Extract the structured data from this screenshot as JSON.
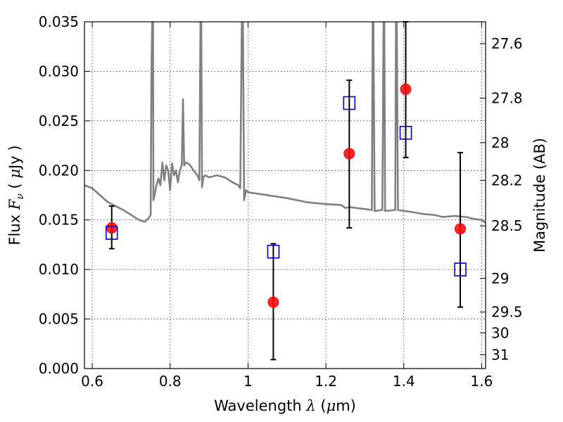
{
  "chart_data": {
    "type": "scatter",
    "title": "",
    "xlabel": {
      "prefix": "Wavelength  ",
      "symbol": "λ",
      "suffix": " (",
      "unit_symbol": "μ",
      "unit": "m)"
    },
    "ylabel": {
      "prefix": "Flux  ",
      "symbol": "F",
      "subscript": "ν",
      "open": "  ( ",
      "unit_symbol": "μ",
      "unit": "Jy )"
    },
    "y2label": "Magnitude (AB)",
    "xlim": [
      0.58,
      1.61
    ],
    "ylim": [
      0.0,
      0.035
    ],
    "grid": true,
    "x_ticks": [
      0.6,
      0.8,
      1.0,
      1.2,
      1.4,
      1.6
    ],
    "x_tick_labels": [
      "0.6",
      "0.8",
      "1",
      "1.2",
      "1.4",
      "1.6"
    ],
    "y_ticks": [
      0.0,
      0.005,
      0.01,
      0.015,
      0.02,
      0.025,
      0.03,
      0.035
    ],
    "y_tick_labels": [
      "0.000",
      "0.005",
      "0.010",
      "0.015",
      "0.020",
      "0.025",
      "0.030",
      "0.035"
    ],
    "y2_ticks": [
      {
        "label": "27.6",
        "flux": 0.0328
      },
      {
        "label": "27.8",
        "flux": 0.0273
      },
      {
        "label": "28",
        "flux": 0.0228
      },
      {
        "label": "28.2",
        "flux": 0.019
      },
      {
        "label": "28.5",
        "flux": 0.0144
      },
      {
        "label": "29",
        "flux": 0.0091
      },
      {
        "label": "29.5",
        "flux": 0.0057
      },
      {
        "label": "30",
        "flux": 0.0036
      },
      {
        "label": "31",
        "flux": 0.0014
      }
    ],
    "observed": {
      "color": "#ff0000",
      "points": [
        {
          "x": 0.65,
          "y": 0.0142,
          "err_low": 0.0121,
          "err_high": 0.0164
        },
        {
          "x": 1.065,
          "y": 0.0067,
          "err_low": 0.0009,
          "err_high": 0.0126
        },
        {
          "x": 1.26,
          "y": 0.0217,
          "err_low": 0.0142,
          "err_high": 0.0291
        },
        {
          "x": 1.405,
          "y": 0.0282,
          "err_low": 0.0213,
          "err_high": 0.035
        },
        {
          "x": 1.545,
          "y": 0.0141,
          "err_low": 0.0062,
          "err_high": 0.0218
        }
      ]
    },
    "model_bands": {
      "color": "#0000cc",
      "points": [
        {
          "x": 0.65,
          "y": 0.0137
        },
        {
          "x": 1.065,
          "y": 0.0118
        },
        {
          "x": 1.26,
          "y": 0.0268
        },
        {
          "x": 1.405,
          "y": 0.0238
        },
        {
          "x": 1.545,
          "y": 0.01
        }
      ]
    },
    "spectrum": {
      "color": "#808080",
      "points": [
        [
          0.58,
          0.0185
        ],
        [
          0.6,
          0.0182
        ],
        [
          0.62,
          0.0175
        ],
        [
          0.64,
          0.0168
        ],
        [
          0.66,
          0.0164
        ],
        [
          0.68,
          0.016
        ],
        [
          0.7,
          0.0155
        ],
        [
          0.72,
          0.015
        ],
        [
          0.735,
          0.0148
        ],
        [
          0.745,
          0.0152
        ],
        [
          0.75,
          0.0155
        ],
        [
          0.752,
          0.03
        ],
        [
          0.754,
          0.035
        ],
        [
          0.756,
          0.035
        ],
        [
          0.757,
          0.017
        ],
        [
          0.76,
          0.0175
        ],
        [
          0.765,
          0.0185
        ],
        [
          0.77,
          0.0192
        ],
        [
          0.775,
          0.0185
        ],
        [
          0.78,
          0.0208
        ],
        [
          0.785,
          0.019
        ],
        [
          0.79,
          0.0205
        ],
        [
          0.795,
          0.02
        ],
        [
          0.8,
          0.018
        ],
        [
          0.805,
          0.0207
        ],
        [
          0.81,
          0.0195
        ],
        [
          0.815,
          0.02
        ],
        [
          0.82,
          0.0188
        ],
        [
          0.825,
          0.02
        ],
        [
          0.83,
          0.0205
        ],
        [
          0.833,
          0.0272
        ],
        [
          0.836,
          0.0205
        ],
        [
          0.84,
          0.0208
        ],
        [
          0.85,
          0.0206
        ],
        [
          0.86,
          0.02
        ],
        [
          0.87,
          0.0195
        ],
        [
          0.875,
          0.019
        ],
        [
          0.878,
          0.035
        ],
        [
          0.88,
          0.035
        ],
        [
          0.882,
          0.0183
        ],
        [
          0.885,
          0.0193
        ],
        [
          0.89,
          0.0195
        ],
        [
          0.9,
          0.0193
        ],
        [
          0.92,
          0.0195
        ],
        [
          0.94,
          0.0193
        ],
        [
          0.96,
          0.0188
        ],
        [
          0.975,
          0.0185
        ],
        [
          0.98,
          0.0182
        ],
        [
          0.984,
          0.035
        ],
        [
          0.987,
          0.035
        ],
        [
          0.99,
          0.017
        ],
        [
          0.995,
          0.018
        ],
        [
          1.0,
          0.0178
        ],
        [
          1.05,
          0.0175
        ],
        [
          1.1,
          0.0172
        ],
        [
          1.15,
          0.0168
        ],
        [
          1.2,
          0.0166
        ],
        [
          1.24,
          0.0165
        ],
        [
          1.25,
          0.0162
        ],
        [
          1.26,
          0.0163
        ],
        [
          1.3,
          0.0161
        ],
        [
          1.318,
          0.016
        ],
        [
          1.32,
          0.035
        ],
        [
          1.322,
          0.035
        ],
        [
          1.325,
          0.0159
        ],
        [
          1.345,
          0.016
        ],
        [
          1.348,
          0.035
        ],
        [
          1.35,
          0.035
        ],
        [
          1.352,
          0.0159
        ],
        [
          1.378,
          0.016
        ],
        [
          1.38,
          0.035
        ],
        [
          1.382,
          0.035
        ],
        [
          1.385,
          0.016
        ],
        [
          1.42,
          0.0158
        ],
        [
          1.45,
          0.0156
        ],
        [
          1.48,
          0.0155
        ],
        [
          1.5,
          0.0153
        ],
        [
          1.53,
          0.0154
        ],
        [
          1.56,
          0.0153
        ],
        [
          1.58,
          0.0151
        ],
        [
          1.6,
          0.015
        ],
        [
          1.61,
          0.0147
        ]
      ]
    }
  }
}
